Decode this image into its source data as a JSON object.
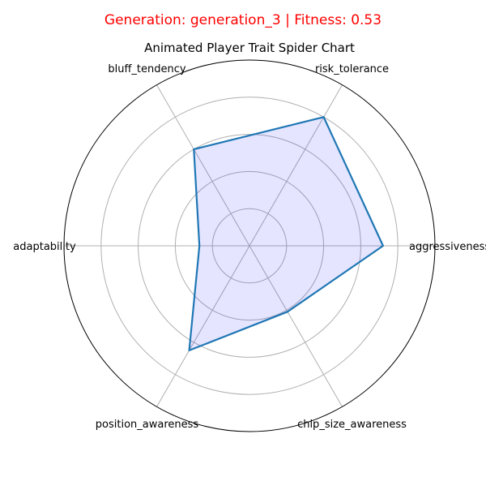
{
  "header": {
    "suptitle": "Generation: generation_3 | Fitness: 0.53",
    "suptitle_color": "#ff0000"
  },
  "chart_data": {
    "type": "radar",
    "title": "Animated Player Trait Spider Chart",
    "axes": [
      "aggressiveness",
      "risk_tolerance",
      "bluff_tendency",
      "adaptability",
      "position_awareness",
      "chip_size_awareness"
    ],
    "series": [
      {
        "values": [
          0.72,
          0.8,
          0.6,
          0.27,
          0.65,
          0.41
        ],
        "line_color": "#1f77b4",
        "fill_color": "#0000ff"
      }
    ],
    "rlim": [
      0,
      1
    ],
    "grid": true,
    "radial_ticks": [
      0.2,
      0.4,
      0.6,
      0.8,
      1.0
    ],
    "radial_tick_labels_shown": false,
    "grid_color": "#b0b0b0",
    "outline_color": "#000000"
  }
}
